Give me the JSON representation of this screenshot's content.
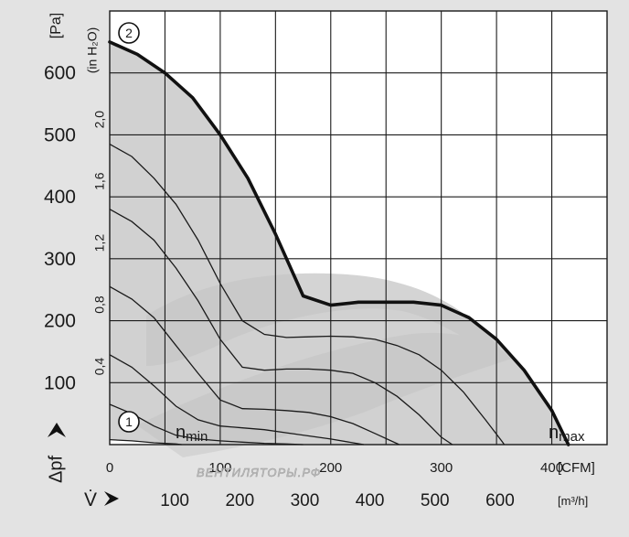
{
  "chart_data": {
    "type": "line",
    "y_unit_left": "[Pa]",
    "y_unit_inner": "(in H₂O)",
    "x_unit_top": "[CFM]",
    "x_unit_bottom": "[m³/h]",
    "ylabel": "Δpf",
    "xlabel": "V̇",
    "ylim": [
      0,
      700
    ],
    "xlim": [
      0,
      450
    ],
    "grid": true,
    "y_ticks_pa": [
      "100",
      "200",
      "300",
      "400",
      "500",
      "600"
    ],
    "y_ticks_inh2o": [
      "0,4",
      "0,8",
      "1,2",
      "1,6",
      "2,0"
    ],
    "x_ticks_cfm": [
      "0",
      "100",
      "200",
      "300",
      "400"
    ],
    "x_ticks_m3h": [
      "100",
      "200",
      "300",
      "400",
      "500",
      "600"
    ],
    "markers": [
      "1",
      "2"
    ],
    "annotations": {
      "nmin_main": "n",
      "nmin_sub": "min",
      "nmax_main": "n",
      "nmax_sub": "max"
    },
    "watermark": "ВЕНТИЛЯТОРЫ.РФ",
    "series": [
      {
        "x": [
          0,
          25,
          50,
          75,
          100,
          125,
          150,
          175,
          200,
          225,
          250,
          275,
          300,
          325,
          350,
          375,
          400,
          415
        ],
        "y": [
          650,
          630,
          600,
          560,
          500,
          430,
          340,
          240,
          225,
          230,
          230,
          230,
          225,
          205,
          170,
          120,
          55,
          0
        ]
      },
      {
        "x": [
          0,
          20,
          40,
          60,
          80,
          100,
          120,
          140,
          160,
          180,
          200,
          220,
          240,
          260,
          280,
          300,
          320,
          340,
          355,
          357
        ],
        "y": [
          485,
          465,
          430,
          388,
          330,
          260,
          200,
          178,
          173,
          174,
          175,
          174,
          170,
          160,
          145,
          120,
          85,
          40,
          5,
          0
        ]
      },
      {
        "x": [
          0,
          20,
          40,
          60,
          80,
          100,
          120,
          140,
          160,
          180,
          200,
          220,
          240,
          260,
          280,
          300,
          310
        ],
        "y": [
          380,
          360,
          330,
          285,
          232,
          170,
          125,
          120,
          122,
          122,
          120,
          115,
          100,
          78,
          48,
          12,
          0
        ]
      },
      {
        "x": [
          0,
          20,
          40,
          60,
          80,
          100,
          120,
          140,
          160,
          180,
          200,
          220,
          240,
          262
        ],
        "y": [
          255,
          235,
          205,
          160,
          115,
          72,
          58,
          57,
          55,
          52,
          45,
          34,
          18,
          0
        ]
      },
      {
        "x": [
          0,
          20,
          40,
          60,
          80,
          100,
          120,
          140,
          160,
          180,
          200,
          220,
          230
        ],
        "y": [
          145,
          125,
          95,
          62,
          40,
          30,
          27,
          24,
          19,
          14,
          9,
          3,
          0
        ]
      },
      {
        "x": [
          0,
          20,
          40,
          60,
          80,
          100,
          120,
          140,
          160,
          175
        ],
        "y": [
          65,
          50,
          30,
          15,
          9,
          6,
          4,
          2,
          1,
          0
        ]
      },
      {
        "x": [
          0,
          20,
          40,
          60,
          65
        ],
        "y": [
          8,
          6,
          3,
          1,
          0
        ]
      }
    ]
  }
}
